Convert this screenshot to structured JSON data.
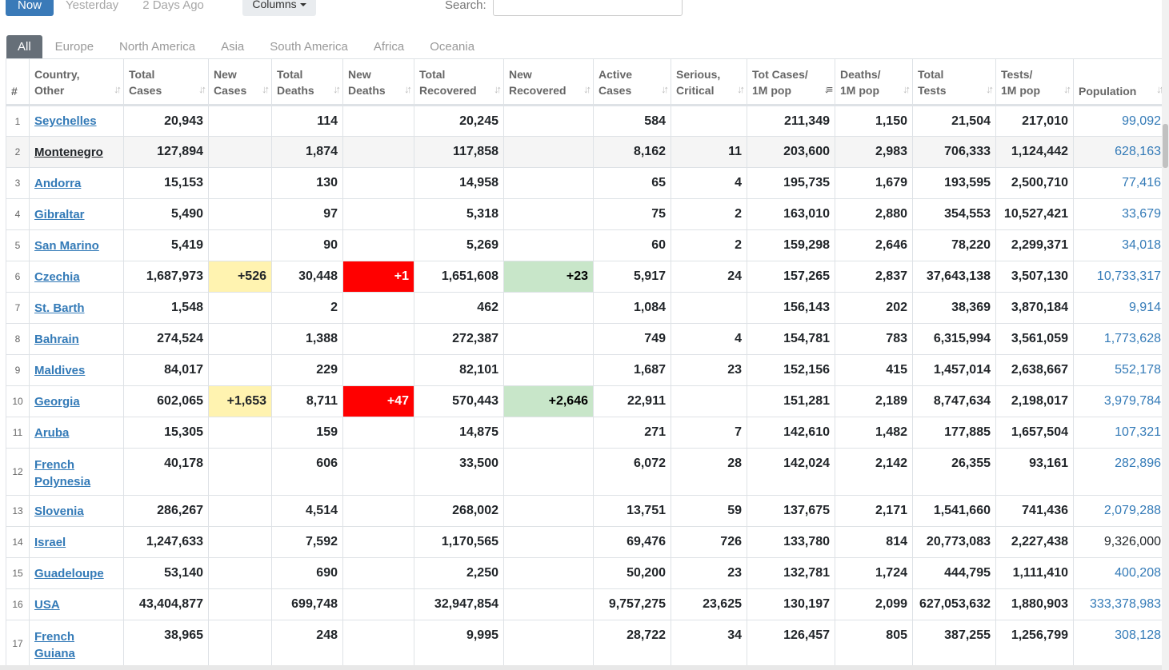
{
  "day_tabs": [
    "Now",
    "Yesterday",
    "2 Days Ago"
  ],
  "columns_label": "Columns",
  "search": {
    "label": "Search:",
    "value": ""
  },
  "region_tabs": [
    "All",
    "Europe",
    "North America",
    "Asia",
    "South America",
    "Africa",
    "Oceania"
  ],
  "headers": {
    "rank": "#",
    "country": [
      "Country,",
      "Other"
    ],
    "total_cases": [
      "Total",
      "Cases"
    ],
    "new_cases": [
      "New",
      "Cases"
    ],
    "total_deaths": [
      "Total",
      "Deaths"
    ],
    "new_deaths": [
      "New",
      "Deaths"
    ],
    "total_recovered": [
      "Total",
      "Recovered"
    ],
    "new_recovered": [
      "New",
      "Recovered"
    ],
    "active_cases": [
      "Active",
      "Cases"
    ],
    "serious": [
      "Serious,",
      "Critical"
    ],
    "cases_per_m": [
      "Tot Cases/",
      "1M pop"
    ],
    "deaths_per_m": [
      "Deaths/",
      "1M pop"
    ],
    "total_tests": [
      "Total",
      "Tests"
    ],
    "tests_per_m": [
      "Tests/",
      "1M pop"
    ],
    "population": [
      "Population"
    ]
  },
  "rows": [
    {
      "rank": "1",
      "country": [
        "Seychelles"
      ],
      "total_cases": "20,943",
      "new_cases": "",
      "total_deaths": "114",
      "new_deaths": "",
      "total_recovered": "20,245",
      "new_recovered": "",
      "active": "584",
      "serious": "",
      "cases_per_m": "211,349",
      "deaths_per_m": "1,150",
      "total_tests": "21,504",
      "tests_per_m": "217,010",
      "population": "99,092"
    },
    {
      "rank": "2",
      "country": [
        "Montenegro"
      ],
      "total_cases": "127,894",
      "new_cases": "",
      "total_deaths": "1,874",
      "new_deaths": "",
      "total_recovered": "117,858",
      "new_recovered": "",
      "active": "8,162",
      "serious": "11",
      "cases_per_m": "203,600",
      "deaths_per_m": "2,983",
      "total_tests": "706,333",
      "tests_per_m": "1,124,442",
      "population": "628,163"
    },
    {
      "rank": "3",
      "country": [
        "Andorra"
      ],
      "total_cases": "15,153",
      "new_cases": "",
      "total_deaths": "130",
      "new_deaths": "",
      "total_recovered": "14,958",
      "new_recovered": "",
      "active": "65",
      "serious": "4",
      "cases_per_m": "195,735",
      "deaths_per_m": "1,679",
      "total_tests": "193,595",
      "tests_per_m": "2,500,710",
      "population": "77,416"
    },
    {
      "rank": "4",
      "country": [
        "Gibraltar"
      ],
      "total_cases": "5,490",
      "new_cases": "",
      "total_deaths": "97",
      "new_deaths": "",
      "total_recovered": "5,318",
      "new_recovered": "",
      "active": "75",
      "serious": "2",
      "cases_per_m": "163,010",
      "deaths_per_m": "2,880",
      "total_tests": "354,553",
      "tests_per_m": "10,527,421",
      "population": "33,679"
    },
    {
      "rank": "5",
      "country": [
        "San Marino"
      ],
      "total_cases": "5,419",
      "new_cases": "",
      "total_deaths": "90",
      "new_deaths": "",
      "total_recovered": "5,269",
      "new_recovered": "",
      "active": "60",
      "serious": "2",
      "cases_per_m": "159,298",
      "deaths_per_m": "2,646",
      "total_tests": "78,220",
      "tests_per_m": "2,299,371",
      "population": "34,018"
    },
    {
      "rank": "6",
      "country": [
        "Czechia"
      ],
      "total_cases": "1,687,973",
      "new_cases": "+526",
      "total_deaths": "30,448",
      "new_deaths": "+1",
      "total_recovered": "1,651,608",
      "new_recovered": "+23",
      "active": "5,917",
      "serious": "24",
      "cases_per_m": "157,265",
      "deaths_per_m": "2,837",
      "total_tests": "37,643,138",
      "tests_per_m": "3,507,130",
      "population": "10,733,317"
    },
    {
      "rank": "7",
      "country": [
        "St. Barth"
      ],
      "total_cases": "1,548",
      "new_cases": "",
      "total_deaths": "2",
      "new_deaths": "",
      "total_recovered": "462",
      "new_recovered": "",
      "active": "1,084",
      "serious": "",
      "cases_per_m": "156,143",
      "deaths_per_m": "202",
      "total_tests": "38,369",
      "tests_per_m": "3,870,184",
      "population": "9,914"
    },
    {
      "rank": "8",
      "country": [
        "Bahrain"
      ],
      "total_cases": "274,524",
      "new_cases": "",
      "total_deaths": "1,388",
      "new_deaths": "",
      "total_recovered": "272,387",
      "new_recovered": "",
      "active": "749",
      "serious": "4",
      "cases_per_m": "154,781",
      "deaths_per_m": "783",
      "total_tests": "6,315,994",
      "tests_per_m": "3,561,059",
      "population": "1,773,628"
    },
    {
      "rank": "9",
      "country": [
        "Maldives"
      ],
      "total_cases": "84,017",
      "new_cases": "",
      "total_deaths": "229",
      "new_deaths": "",
      "total_recovered": "82,101",
      "new_recovered": "",
      "active": "1,687",
      "serious": "23",
      "cases_per_m": "152,156",
      "deaths_per_m": "415",
      "total_tests": "1,457,014",
      "tests_per_m": "2,638,667",
      "population": "552,178"
    },
    {
      "rank": "10",
      "country": [
        "Georgia"
      ],
      "total_cases": "602,065",
      "new_cases": "+1,653",
      "total_deaths": "8,711",
      "new_deaths": "+47",
      "total_recovered": "570,443",
      "new_recovered": "+2,646",
      "active": "22,911",
      "serious": "",
      "cases_per_m": "151,281",
      "deaths_per_m": "2,189",
      "total_tests": "8,747,634",
      "tests_per_m": "2,198,017",
      "population": "3,979,784"
    },
    {
      "rank": "11",
      "country": [
        "Aruba"
      ],
      "total_cases": "15,305",
      "new_cases": "",
      "total_deaths": "159",
      "new_deaths": "",
      "total_recovered": "14,875",
      "new_recovered": "",
      "active": "271",
      "serious": "7",
      "cases_per_m": "142,610",
      "deaths_per_m": "1,482",
      "total_tests": "177,885",
      "tests_per_m": "1,657,504",
      "population": "107,321"
    },
    {
      "rank": "12",
      "country": [
        "French",
        "Polynesia"
      ],
      "total_cases": "40,178",
      "new_cases": "",
      "total_deaths": "606",
      "new_deaths": "",
      "total_recovered": "33,500",
      "new_recovered": "",
      "active": "6,072",
      "serious": "28",
      "cases_per_m": "142,024",
      "deaths_per_m": "2,142",
      "total_tests": "26,355",
      "tests_per_m": "93,161",
      "population": "282,896"
    },
    {
      "rank": "13",
      "country": [
        "Slovenia"
      ],
      "total_cases": "286,267",
      "new_cases": "",
      "total_deaths": "4,514",
      "new_deaths": "",
      "total_recovered": "268,002",
      "new_recovered": "",
      "active": "13,751",
      "serious": "59",
      "cases_per_m": "137,675",
      "deaths_per_m": "2,171",
      "total_tests": "1,541,660",
      "tests_per_m": "741,436",
      "population": "2,079,288"
    },
    {
      "rank": "14",
      "country": [
        "Israel"
      ],
      "total_cases": "1,247,633",
      "new_cases": "",
      "total_deaths": "7,592",
      "new_deaths": "",
      "total_recovered": "1,170,565",
      "new_recovered": "",
      "active": "69,476",
      "serious": "726",
      "cases_per_m": "133,780",
      "deaths_per_m": "814",
      "total_tests": "20,773,083",
      "tests_per_m": "2,227,438",
      "population": "9,326,000"
    },
    {
      "rank": "15",
      "country": [
        "Guadeloupe"
      ],
      "total_cases": "53,140",
      "new_cases": "",
      "total_deaths": "690",
      "new_deaths": "",
      "total_recovered": "2,250",
      "new_recovered": "",
      "active": "50,200",
      "serious": "23",
      "cases_per_m": "132,781",
      "deaths_per_m": "1,724",
      "total_tests": "444,795",
      "tests_per_m": "1,111,410",
      "population": "400,208"
    },
    {
      "rank": "16",
      "country": [
        "USA"
      ],
      "total_cases": "43,404,877",
      "new_cases": "",
      "total_deaths": "699,748",
      "new_deaths": "",
      "total_recovered": "32,947,854",
      "new_recovered": "",
      "active": "9,757,275",
      "serious": "23,625",
      "cases_per_m": "130,197",
      "deaths_per_m": "2,099",
      "total_tests": "627,053,632",
      "tests_per_m": "1,880,903",
      "population": "333,378,983"
    },
    {
      "rank": "17",
      "country": [
        "French",
        "Guiana"
      ],
      "total_cases": "38,965",
      "new_cases": "",
      "total_deaths": "248",
      "new_deaths": "",
      "total_recovered": "9,995",
      "new_recovered": "",
      "active": "28,722",
      "serious": "34",
      "cases_per_m": "126,457",
      "deaths_per_m": "805",
      "total_tests": "387,255",
      "tests_per_m": "1,256,799",
      "population": "308,128"
    }
  ],
  "colors": {
    "accent": "#3a7ab8",
    "link": "#337ab7",
    "new_cases_bg": "#fff3b0",
    "new_deaths_bg": "#ff0000",
    "new_recovered_bg": "#c8e6c9"
  }
}
